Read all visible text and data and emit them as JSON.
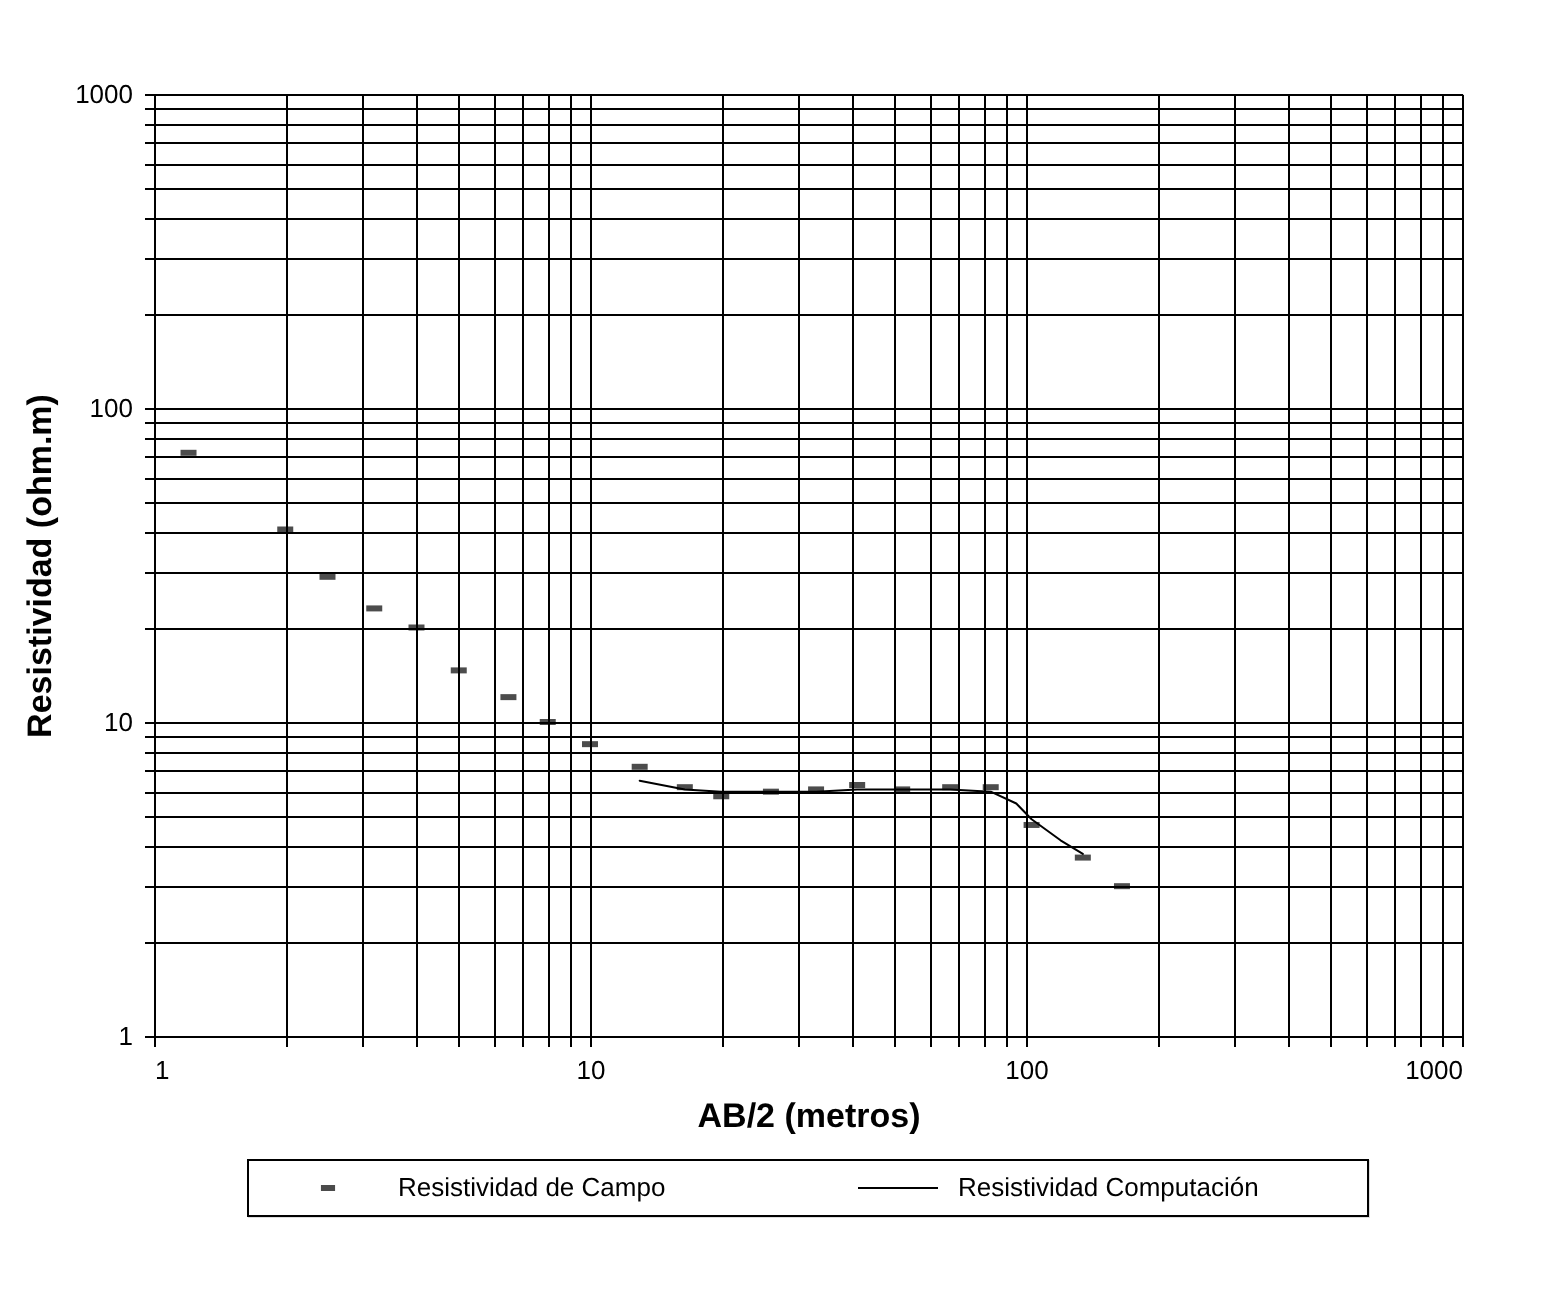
{
  "chart_data": {
    "type": "line",
    "xlabel": "AB/2 (metros)",
    "ylabel": "Resistividad (ohm.m)",
    "log": "xy",
    "grid": true,
    "legend": "bottom",
    "xlim": [
      1,
      1000
    ],
    "ylim": [
      1,
      1000
    ],
    "xticks": [
      1,
      {
        "value": 2,
        "label": null
      },
      {
        "value": 3,
        "label": null
      },
      {
        "value": 4,
        "label": null
      },
      {
        "value": 5,
        "label": null
      },
      {
        "value": 6,
        "label": null
      },
      {
        "value": 7,
        "label": null
      },
      {
        "value": 8,
        "label": null
      },
      {
        "value": 9,
        "label": null
      },
      10,
      {
        "value": 20,
        "label": null
      },
      {
        "value": 30,
        "label": null
      },
      {
        "value": 40,
        "label": null
      },
      {
        "value": 50,
        "label": null
      },
      {
        "value": 60,
        "label": null
      },
      {
        "value": 70,
        "label": null
      },
      {
        "value": 80,
        "label": null
      },
      {
        "value": 90,
        "label": null
      },
      100,
      {
        "value": 200,
        "label": null
      },
      {
        "value": 300,
        "label": null
      },
      {
        "value": 400,
        "label": null
      },
      {
        "value": 500,
        "label": null
      },
      {
        "value": 600,
        "label": null
      },
      {
        "value": 700,
        "label": null
      },
      {
        "value": 800,
        "label": null
      },
      {
        "value": 900,
        "label": null
      },
      1000
    ],
    "yticks": [
      1,
      {
        "value": 2,
        "label": null
      },
      {
        "value": 3,
        "label": null
      },
      {
        "value": 4,
        "label": null
      },
      {
        "value": 5,
        "label": null
      },
      {
        "value": 6,
        "label": null
      },
      {
        "value": 7,
        "label": null
      },
      {
        "value": 8,
        "label": null
      },
      {
        "value": 9,
        "label": null
      },
      10,
      {
        "value": 20,
        "label": null
      },
      {
        "value": 30,
        "label": null
      },
      {
        "value": 40,
        "label": null
      },
      {
        "value": 50,
        "label": null
      },
      {
        "value": 60,
        "label": null
      },
      {
        "value": 70,
        "label": null
      },
      {
        "value": 80,
        "label": null
      },
      {
        "value": 90,
        "label": null
      },
      100,
      {
        "value": 200,
        "label": null
      },
      {
        "value": 300,
        "label": null
      },
      {
        "value": 400,
        "label": null
      },
      {
        "value": 500,
        "label": null
      },
      {
        "value": 600,
        "label": null
      },
      {
        "value": 700,
        "label": null
      },
      {
        "value": 800,
        "label": null
      },
      {
        "value": 900,
        "label": null
      },
      1000
    ],
    "series": [
      {
        "name": "Resistividad de Campo",
        "type": "scatter",
        "color": "#000000",
        "x": [
          1.2,
          2,
          2.5,
          3.2,
          4,
          5,
          6.5,
          8,
          10,
          13,
          16.5,
          20,
          26,
          33,
          41,
          52,
          67,
          83,
          103,
          135,
          166
        ],
        "values": [
          72,
          41,
          29,
          23,
          20,
          14.6,
          12,
          10,
          8.5,
          7.2,
          6.2,
          5.8,
          6,
          6.1,
          6.3,
          6.1,
          6.2,
          6.2,
          4.7,
          3.7,
          3
        ]
      },
      {
        "name": "Resistividad Computación",
        "color": "#000000",
        "x": [
          13,
          16.5,
          20,
          26,
          33,
          41,
          52,
          67,
          83,
          95,
          103,
          120,
          135
        ],
        "values": [
          6.5,
          6.1,
          6,
          6,
          6,
          6.1,
          6.1,
          6.1,
          6,
          5.5,
          4.9,
          4.2,
          3.8
        ]
      }
    ]
  }
}
